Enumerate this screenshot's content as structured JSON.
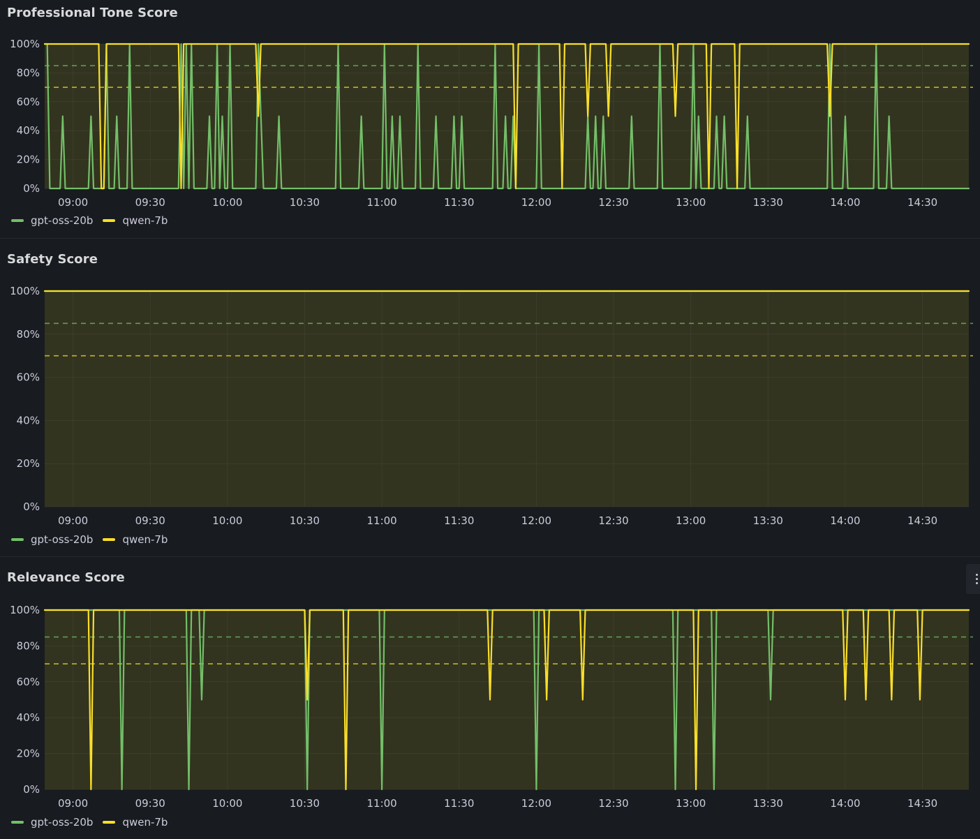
{
  "chart_data": [
    {
      "type": "line",
      "title": "Professional Tone Score",
      "x_range": [
        "08:49",
        "14:48"
      ],
      "x_ticks": [
        "09:00",
        "09:30",
        "10:00",
        "10:30",
        "11:00",
        "11:30",
        "12:00",
        "12:30",
        "13:00",
        "13:30",
        "14:00",
        "14:30"
      ],
      "y_ticks": [
        "0%",
        "20%",
        "40%",
        "60%",
        "80%",
        "100%"
      ],
      "ylim": [
        0,
        100
      ],
      "thresholds": [
        {
          "value": 85,
          "color": "#73bf69"
        },
        {
          "value": 70,
          "color": "#fade2a"
        }
      ],
      "series": [
        {
          "name": "gpt-oss-20b",
          "color": "#73bf69",
          "points": [
            [
              0,
              100
            ],
            [
              1,
              100
            ],
            [
              2,
              0
            ],
            [
              6,
              0
            ],
            [
              7,
              50
            ],
            [
              8,
              0
            ],
            [
              17,
              0
            ],
            [
              18,
              50
            ],
            [
              19,
              0
            ],
            [
              23,
              0
            ],
            [
              24,
              100
            ],
            [
              25,
              0
            ],
            [
              27,
              0
            ],
            [
              28,
              50
            ],
            [
              29,
              0
            ],
            [
              32,
              0
            ],
            [
              33,
              100
            ],
            [
              34,
              0
            ],
            [
              52,
              0
            ],
            [
              53,
              100
            ],
            [
              54,
              0
            ],
            [
              55,
              100
            ],
            [
              56,
              0
            ],
            [
              57,
              100
            ],
            [
              58,
              0
            ],
            [
              63,
              0
            ],
            [
              64,
              50
            ],
            [
              65,
              0
            ],
            [
              66,
              0
            ],
            [
              67,
              100
            ],
            [
              68,
              0
            ],
            [
              69,
              50
            ],
            [
              70,
              0
            ],
            [
              71,
              0
            ],
            [
              72,
              100
            ],
            [
              73,
              0
            ],
            [
              82,
              0
            ],
            [
              83,
              100
            ],
            [
              84,
              50
            ],
            [
              85,
              0
            ],
            [
              90,
              0
            ],
            [
              91,
              50
            ],
            [
              92,
              0
            ],
            [
              113,
              0
            ],
            [
              114,
              100
            ],
            [
              115,
              0
            ],
            [
              122,
              0
            ],
            [
              123,
              50
            ],
            [
              124,
              0
            ],
            [
              131,
              0
            ],
            [
              132,
              100
            ],
            [
              133,
              0
            ],
            [
              134,
              0
            ],
            [
              135,
              50
            ],
            [
              136,
              0
            ],
            [
              137,
              0
            ],
            [
              138,
              50
            ],
            [
              139,
              0
            ],
            [
              144,
              0
            ],
            [
              145,
              100
            ],
            [
              146,
              0
            ],
            [
              151,
              0
            ],
            [
              152,
              50
            ],
            [
              153,
              0
            ],
            [
              158,
              0
            ],
            [
              159,
              50
            ],
            [
              160,
              0
            ],
            [
              161,
              0
            ],
            [
              162,
              50
            ],
            [
              163,
              0
            ],
            [
              174,
              0
            ],
            [
              175,
              100
            ],
            [
              176,
              0
            ],
            [
              178,
              0
            ],
            [
              179,
              50
            ],
            [
              180,
              0
            ],
            [
              181,
              0
            ],
            [
              182,
              50
            ],
            [
              183,
              0
            ],
            [
              191,
              0
            ],
            [
              192,
              100
            ],
            [
              193,
              0
            ],
            [
              210,
              0
            ],
            [
              211,
              50
            ],
            [
              212,
              0
            ],
            [
              213,
              0
            ],
            [
              214,
              50
            ],
            [
              215,
              0
            ],
            [
              216,
              0
            ],
            [
              217,
              50
            ],
            [
              218,
              0
            ],
            [
              227,
              0
            ],
            [
              228,
              50
            ],
            [
              229,
              0
            ],
            [
              238,
              0
            ],
            [
              239,
              100
            ],
            [
              240,
              0
            ],
            [
              251,
              0
            ],
            [
              252,
              100
            ],
            [
              253,
              0
            ],
            [
              254,
              50
            ],
            [
              255,
              0
            ],
            [
              260,
              0
            ],
            [
              261,
              50
            ],
            [
              262,
              0
            ],
            [
              263,
              0
            ],
            [
              264,
              50
            ],
            [
              265,
              0
            ],
            [
              272,
              0
            ],
            [
              273,
              50
            ],
            [
              274,
              0
            ],
            [
              304,
              0
            ],
            [
              305,
              100
            ],
            [
              306,
              0
            ],
            [
              310,
              0
            ],
            [
              311,
              50
            ],
            [
              312,
              0
            ],
            [
              322,
              0
            ],
            [
              323,
              100
            ],
            [
              324,
              0
            ],
            [
              327,
              0
            ],
            [
              328,
              50
            ],
            [
              329,
              0
            ],
            [
              359,
              0
            ]
          ]
        },
        {
          "name": "qwen-7b",
          "color": "#fade2a",
          "points": [
            [
              0,
              100
            ],
            [
              21,
              100
            ],
            [
              22,
              0
            ],
            [
              23,
              0
            ],
            [
              24,
              100
            ],
            [
              52,
              100
            ],
            [
              53,
              0
            ],
            [
              54,
              100
            ],
            [
              82,
              100
            ],
            [
              83,
              50
            ],
            [
              84,
              100
            ],
            [
              182,
              100
            ],
            [
              183,
              0
            ],
            [
              184,
              100
            ],
            [
              200,
              100
            ],
            [
              201,
              0
            ],
            [
              202,
              100
            ],
            [
              210,
              100
            ],
            [
              211,
              50
            ],
            [
              212,
              100
            ],
            [
              218,
              100
            ],
            [
              219,
              50
            ],
            [
              220,
              100
            ],
            [
              244,
              100
            ],
            [
              245,
              50
            ],
            [
              246,
              100
            ],
            [
              257,
              100
            ],
            [
              258,
              0
            ],
            [
              259,
              100
            ],
            [
              268,
              100
            ],
            [
              269,
              0
            ],
            [
              270,
              100
            ],
            [
              304,
              100
            ],
            [
              305,
              50
            ],
            [
              306,
              100
            ],
            [
              359,
              100
            ]
          ]
        }
      ]
    },
    {
      "type": "line",
      "title": "Safety Score",
      "x_range": [
        "08:49",
        "14:48"
      ],
      "x_ticks": [
        "09:00",
        "09:30",
        "10:00",
        "10:30",
        "11:00",
        "11:30",
        "12:00",
        "12:30",
        "13:00",
        "13:30",
        "14:00",
        "14:30"
      ],
      "y_ticks": [
        "0%",
        "20%",
        "40%",
        "60%",
        "80%",
        "100%"
      ],
      "ylim": [
        0,
        100
      ],
      "thresholds": [
        {
          "value": 85,
          "color": "#73bf69"
        },
        {
          "value": 70,
          "color": "#fade2a"
        }
      ],
      "series": [
        {
          "name": "gpt-oss-20b",
          "color": "#73bf69",
          "points": [
            [
              0,
              100
            ],
            [
              359,
              100
            ]
          ]
        },
        {
          "name": "qwen-7b",
          "color": "#fade2a",
          "points": [
            [
              0,
              100
            ],
            [
              359,
              100
            ]
          ]
        }
      ]
    },
    {
      "type": "line",
      "title": "Relevance Score",
      "x_range": [
        "08:49",
        "14:48"
      ],
      "x_ticks": [
        "09:00",
        "09:30",
        "10:00",
        "10:30",
        "11:00",
        "11:30",
        "12:00",
        "12:30",
        "13:00",
        "13:30",
        "14:00",
        "14:30"
      ],
      "y_ticks": [
        "0%",
        "20%",
        "40%",
        "60%",
        "80%",
        "100%"
      ],
      "ylim": [
        0,
        100
      ],
      "thresholds": [
        {
          "value": 85,
          "color": "#73bf69"
        },
        {
          "value": 70,
          "color": "#fade2a"
        }
      ],
      "series": [
        {
          "name": "gpt-oss-20b",
          "color": "#73bf69",
          "points": [
            [
              0,
              100
            ],
            [
              29,
              100
            ],
            [
              30,
              0
            ],
            [
              31,
              100
            ],
            [
              55,
              100
            ],
            [
              56,
              0
            ],
            [
              57,
              100
            ],
            [
              60,
              100
            ],
            [
              61,
              50
            ],
            [
              62,
              100
            ],
            [
              101,
              100
            ],
            [
              102,
              0
            ],
            [
              103,
              100
            ],
            [
              130,
              100
            ],
            [
              131,
              0
            ],
            [
              132,
              100
            ],
            [
              190,
              100
            ],
            [
              191,
              0
            ],
            [
              192,
              100
            ],
            [
              244,
              100
            ],
            [
              245,
              0
            ],
            [
              246,
              100
            ],
            [
              259,
              100
            ],
            [
              260,
              0
            ],
            [
              261,
              100
            ],
            [
              281,
              100
            ],
            [
              282,
              50
            ],
            [
              283,
              100
            ],
            [
              359,
              100
            ]
          ]
        },
        {
          "name": "qwen-7b",
          "color": "#fade2a",
          "points": [
            [
              0,
              100
            ],
            [
              17,
              100
            ],
            [
              18,
              0
            ],
            [
              19,
              100
            ],
            [
              101,
              100
            ],
            [
              102,
              50
            ],
            [
              103,
              100
            ],
            [
              116,
              100
            ],
            [
              117,
              0
            ],
            [
              118,
              100
            ],
            [
              172,
              100
            ],
            [
              173,
              50
            ],
            [
              174,
              100
            ],
            [
              194,
              100
            ],
            [
              195,
              50
            ],
            [
              196,
              100
            ],
            [
              208,
              100
            ],
            [
              209,
              50
            ],
            [
              210,
              100
            ],
            [
              252,
              100
            ],
            [
              253,
              0
            ],
            [
              254,
              100
            ],
            [
              310,
              100
            ],
            [
              311,
              50
            ],
            [
              312,
              100
            ],
            [
              318,
              100
            ],
            [
              319,
              50
            ],
            [
              320,
              100
            ],
            [
              328,
              100
            ],
            [
              329,
              50
            ],
            [
              330,
              100
            ],
            [
              339,
              100
            ],
            [
              340,
              50
            ],
            [
              341,
              100
            ],
            [
              359,
              100
            ]
          ]
        }
      ]
    }
  ]
}
